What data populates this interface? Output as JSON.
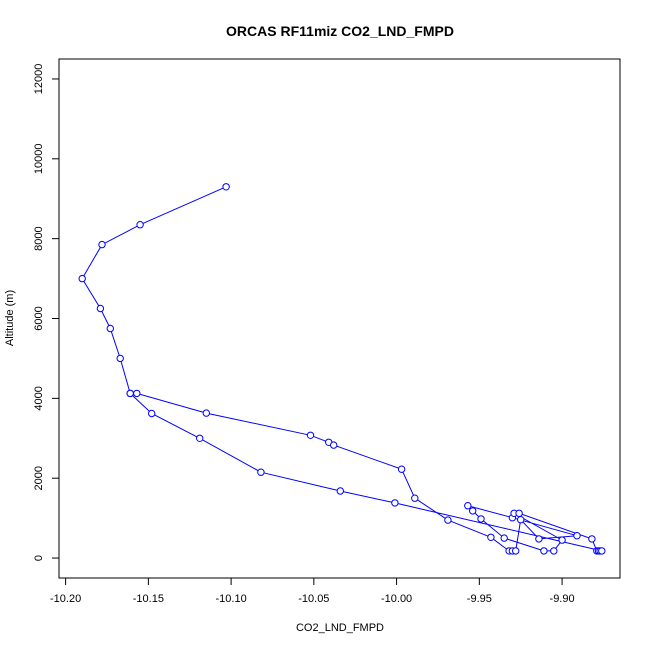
{
  "chart_data": {
    "type": "line",
    "title": "ORCAS RF11miz CO2_LND_FMPD",
    "xlabel": "CO2_LND_FMPD",
    "ylabel": "Altitude (m)",
    "xlim": [
      -10.204,
      -9.865
    ],
    "ylim": [
      -500,
      12500
    ],
    "x_ticks": [
      -10.2,
      -10.15,
      -10.1,
      -10.05,
      -10.0,
      -9.95,
      -9.9
    ],
    "x_tick_labels": [
      "-10.20",
      "-10.15",
      "-10.10",
      "-10.05",
      "-10.00",
      "-9.95",
      "-9.90"
    ],
    "y_ticks": [
      0,
      2000,
      4000,
      6000,
      8000,
      10000,
      12000
    ],
    "y_tick_labels": [
      "0",
      "2000",
      "4000",
      "6000",
      "8000",
      "10000",
      "12000"
    ],
    "grid": false,
    "series": [
      {
        "color": "#0000ff",
        "marker": "open-circle",
        "points": [
          [
            -10.103,
            9300
          ],
          [
            -10.155,
            8350
          ],
          [
            -10.178,
            7850
          ],
          [
            -10.19,
            7000
          ],
          [
            -10.179,
            6250
          ],
          [
            -10.173,
            5750
          ],
          [
            -10.167,
            5000
          ],
          [
            -10.161,
            4125
          ],
          [
            -10.157,
            4125
          ],
          [
            -10.115,
            3630
          ],
          [
            -10.052,
            3075
          ],
          [
            -10.041,
            2900
          ],
          [
            -10.038,
            2830
          ],
          [
            -9.997,
            2225
          ],
          [
            -9.989,
            1500
          ],
          [
            -9.969,
            950
          ],
          [
            -9.943,
            520
          ],
          [
            -9.932,
            180
          ],
          [
            -9.93,
            180
          ],
          [
            -9.928,
            180
          ],
          [
            -9.925,
            960
          ],
          [
            -9.914,
            480
          ],
          [
            -9.891,
            560
          ],
          [
            -9.93,
            1010
          ],
          [
            -9.957,
            1310
          ],
          [
            -9.954,
            1180
          ],
          [
            -9.949,
            980
          ],
          [
            -9.935,
            500
          ],
          [
            -9.911,
            180
          ],
          [
            -9.905,
            180
          ],
          [
            -9.9,
            450
          ],
          [
            -9.929,
            1120
          ],
          [
            -9.926,
            1120
          ],
          [
            -9.882,
            480
          ],
          [
            -9.879,
            180
          ],
          [
            -9.878,
            180
          ],
          [
            -9.877,
            180
          ],
          [
            -9.876,
            180
          ],
          [
            -10.001,
            1380
          ],
          [
            -10.034,
            1680
          ],
          [
            -10.082,
            2150
          ],
          [
            -10.119,
            3000
          ],
          [
            -10.148,
            3620
          ],
          [
            -10.161,
            4125
          ]
        ]
      }
    ]
  }
}
